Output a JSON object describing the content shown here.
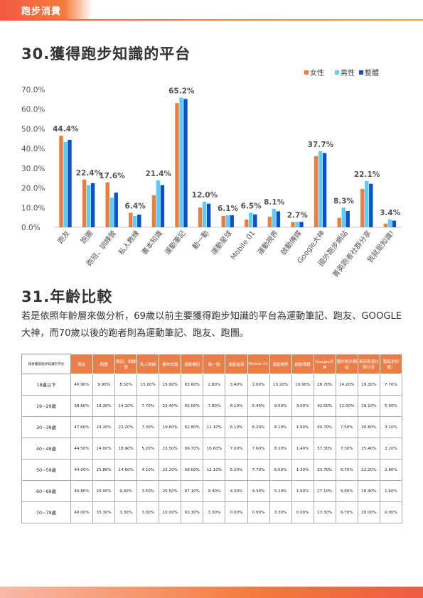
{
  "header": {
    "section_title": "跑步消費"
  },
  "heading1": "30.獲得跑步知識的平台",
  "heading2": "31.年齡比較",
  "paragraph": "若是依照年齡層來做分析，69歲以前主要獲得跑步知識的平台為運動筆記、跑友、GOOGLE大神，而70歲以後的跑者則為運動筆記、跑友、跑團。",
  "colors": {
    "female": "#ee7d3d",
    "male": "#5ecdf5",
    "total": "#0a52c9",
    "accent": "#ea7e48"
  },
  "chart_data": {
    "type": "bar",
    "categories": [
      "跑友",
      "跑團",
      "跑班、訓練營",
      "私人教練",
      "書本知識",
      "運動筆記",
      "動一動",
      "運動星球",
      "Mobile 01",
      "運動視界",
      "啟動傳媒",
      "Google大神",
      "國外跑步網站",
      "菁英跑者社群分享",
      "我就是知識!"
    ],
    "series": [
      {
        "name": "女性",
        "values": [
          46.5,
          24.2,
          22.8,
          7.4,
          16.3,
          63.1,
          10.0,
          5.8,
          3.9,
          5.3,
          2.6,
          36.2,
          4.8,
          19.5,
          1.8
        ]
      },
      {
        "name": "男性",
        "values": [
          43.4,
          21.4,
          15.0,
          5.8,
          23.8,
          65.9,
          13.0,
          6.1,
          7.4,
          9.4,
          2.7,
          38.6,
          10.0,
          23.5,
          4.0
        ]
      },
      {
        "name": "整體",
        "values": [
          44.4,
          22.4,
          17.6,
          6.4,
          21.4,
          65.2,
          12.0,
          6.1,
          6.5,
          8.1,
          2.7,
          37.7,
          8.3,
          22.1,
          3.4
        ]
      }
    ],
    "data_labels": [
      "44.4%",
      "22.4%",
      "17.6%",
      "6.4%",
      "21.4%",
      "65.2%",
      "12.0%",
      "6.1%",
      "6.5%",
      "8.1%",
      "2.7%",
      "37.7%",
      "8.3%",
      "22.1%",
      "3.4%"
    ],
    "yticks": [
      "0.0%",
      "10.0%",
      "20.0%",
      "30.0%",
      "40.0%",
      "50.0%",
      "60.0%",
      "70.0%"
    ],
    "ylim": [
      0,
      70
    ],
    "legend_position": "top-right",
    "grid": false
  },
  "table": {
    "corner": "跑者獲取跑步知識的平台",
    "columns": [
      "跑友",
      "跑團",
      "跑班、訓練營",
      "私人教練",
      "書本知識",
      "運動筆記",
      "動一動",
      "運動星球",
      "Mobile 01",
      "運動視界",
      "啟動傳媒",
      "Google大神",
      "國外跑步網站",
      "菁英跑者社群分享",
      "我就是知識！"
    ],
    "rows": [
      {
        "label": "18歲以下",
        "cells": [
          "40.90%",
          "9.90%",
          "8.50%",
          "15.00%",
          "15.90%",
          "63.60%",
          "2.80%",
          "3.40%",
          "2.00%",
          "10.20%",
          "19.90%",
          "28.70%",
          "14.20%",
          "19.30%",
          "7.70%"
        ]
      },
      {
        "label": "19~29歲",
        "cells": [
          "39.60%",
          "16.30%",
          "14.10%",
          "7.70%",
          "22.40%",
          "62.00%",
          "7.80%",
          "6.10%",
          "5.40%",
          "9.50%",
          "3.00%",
          "42.50%",
          "11.00%",
          "19.10%",
          "5.90%"
        ]
      },
      {
        "label": "30~39歲",
        "cells": [
          "47.60%",
          "24.20%",
          "22.20%",
          "7.30%",
          "19.60%",
          "62.80%",
          "11.10%",
          "6.10%",
          "6.20%",
          "8.10%",
          "1.60%",
          "40.70%",
          "7.50%",
          "20.80%",
          "3.10%"
        ]
      },
      {
        "label": "40~49歲",
        "cells": [
          "44.50%",
          "24.00%",
          "18.90%",
          "5.20%",
          "22.50%",
          "66.70%",
          "16.60%",
          "7.00%",
          "7.60%",
          "8.20%",
          "1.40%",
          "37.30%",
          "7.30%",
          "25.40%",
          "2.20%"
        ]
      },
      {
        "label": "50~59歲",
        "cells": [
          "44.00%",
          "25.80%",
          "14.60%",
          "4.10%",
          "22.20%",
          "68.00%",
          "12.10%",
          "5.20%",
          "7.70%",
          "6.60%",
          "1.30%",
          "33.70%",
          "6.70%",
          "22.20%",
          "2.80%"
        ]
      },
      {
        "label": "60~69歲",
        "cells": [
          "40.80%",
          "20.00%",
          "9.40%",
          "3.50%",
          "25.50%",
          "67.10%",
          "9.40%",
          "4.30%",
          "4.30%",
          "5.10%",
          "1.60%",
          "27.10%",
          "9.80%",
          "20.40%",
          "1.60%"
        ]
      },
      {
        "label": "70~79歲",
        "cells": [
          "40.00%",
          "33.30%",
          "3.30%",
          "3.30%",
          "10.00%",
          "63.30%",
          "3.30%",
          "0.00%",
          "0.00%",
          "3.30%",
          "0.00%",
          "13.30%",
          "6.70%",
          "20.00%",
          "0.00%"
        ]
      }
    ]
  }
}
